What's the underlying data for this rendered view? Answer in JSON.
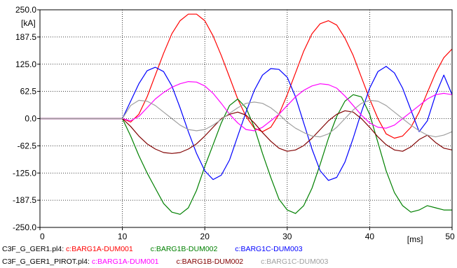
{
  "chart_data": {
    "type": "line",
    "title": "",
    "xlabel": "",
    "ylabel": "",
    "x_unit": "[ms]",
    "y_unit": "[kA]",
    "xlim": [
      0,
      50
    ],
    "ylim": [
      -250,
      250
    ],
    "grid": true,
    "x_ticks": [
      "0",
      "10",
      "20",
      "30",
      "40",
      "[ms]",
      "50"
    ],
    "y_ticks": [
      "250.0",
      "187.5",
      "125.0",
      "62.5",
      "0.0",
      "-62.5",
      "-125.0",
      "-187.5",
      "-250.0"
    ],
    "x_tick_values": [
      0,
      10,
      20,
      30,
      40,
      50
    ],
    "y_tick_values": [
      250,
      187.5,
      125,
      62.5,
      0,
      -62.5,
      -125,
      -187.5,
      -250
    ],
    "x": [
      0,
      5,
      10,
      11,
      12,
      13,
      14,
      15,
      16,
      17,
      18,
      19,
      20,
      21,
      22,
      23,
      24,
      25,
      26,
      27,
      28,
      29,
      30,
      31,
      32,
      33,
      34,
      35,
      36,
      37,
      38,
      39,
      40,
      41,
      42,
      43,
      44,
      45,
      46,
      47,
      48,
      49,
      50
    ],
    "series": [
      {
        "name": "c:BARG1A-DUM001",
        "file": "C3F_G_GER1.pl4",
        "color": "#ff0000",
        "values": [
          0,
          0,
          0,
          -8,
          10,
          50,
          100,
          150,
          195,
          225,
          240,
          240,
          225,
          190,
          145,
          95,
          45,
          5,
          -22,
          -30,
          -20,
          10,
          55,
          105,
          155,
          195,
          218,
          225,
          215,
          185,
          145,
          95,
          45,
          0,
          -35,
          -45,
          -40,
          -20,
          15,
          60,
          105,
          140,
          160
        ]
      },
      {
        "name": "c:BARG1B-DUM002",
        "file": "C3F_G_GER1.pl4",
        "color": "#008000",
        "values": [
          0,
          0,
          0,
          -40,
          -85,
          -125,
          -160,
          -195,
          -215,
          -220,
          -205,
          -165,
          -110,
          -60,
          -10,
          30,
          45,
          25,
          -20,
          -80,
          -135,
          -185,
          -210,
          -218,
          -200,
          -160,
          -105,
          -45,
          5,
          40,
          55,
          50,
          10,
          -55,
          -120,
          -170,
          -200,
          -215,
          -210,
          -200,
          -205,
          -210,
          -210
        ]
      },
      {
        "name": "c:BARG1C-DUM003",
        "file": "C3F_G_GER1.pl4",
        "color": "#0000ff",
        "values": [
          0,
          0,
          0,
          40,
          80,
          110,
          118,
          108,
          75,
          25,
          -30,
          -80,
          -120,
          -140,
          -130,
          -95,
          -40,
          15,
          65,
          100,
          115,
          113,
          95,
          50,
          -10,
          -70,
          -120,
          -142,
          -135,
          -100,
          -45,
          15,
          70,
          108,
          120,
          105,
          70,
          20,
          -30,
          -5,
          55,
          100,
          55
        ]
      },
      {
        "name": "c:BARG1A-DUM001",
        "file": "C3F_G_GER1_PIROT.pl4",
        "color": "#ff00ff",
        "values": [
          0,
          0,
          0,
          -5,
          5,
          25,
          45,
          60,
          72,
          80,
          85,
          84,
          75,
          58,
          35,
          10,
          -10,
          -25,
          -28,
          -20,
          -5,
          10,
          30,
          50,
          65,
          75,
          80,
          78,
          70,
          52,
          30,
          8,
          -10,
          -20,
          -22,
          -15,
          0,
          15,
          30,
          45,
          55,
          58,
          55
        ]
      },
      {
        "name": "c:BARG1B-DUM002",
        "file": "C3F_G_GER1_PIROT.pl4",
        "color": "#800000",
        "values": [
          0,
          0,
          0,
          -18,
          -40,
          -58,
          -70,
          -78,
          -80,
          -78,
          -70,
          -58,
          -40,
          -20,
          0,
          10,
          15,
          8,
          -10,
          -32,
          -52,
          -68,
          -75,
          -72,
          -62,
          -45,
          -25,
          -5,
          10,
          18,
          15,
          0,
          -20,
          -42,
          -60,
          -72,
          -75,
          -65,
          -48,
          -38,
          -55,
          -68,
          -72
        ]
      },
      {
        "name": "c:BARG1C-DUM003",
        "file": "C3F_G_GER1_PIROT.pl4",
        "color": "#a0a0a0",
        "values": [
          0,
          0,
          0,
          30,
          42,
          40,
          30,
          15,
          0,
          -15,
          -25,
          -28,
          -25,
          -15,
          -2,
          12,
          25,
          35,
          38,
          35,
          25,
          10,
          -8,
          -22,
          -32,
          -40,
          -42,
          -35,
          -20,
          0,
          20,
          35,
          42,
          40,
          30,
          15,
          0,
          -15,
          -28,
          -38,
          -42,
          -38,
          -30
        ]
      }
    ]
  },
  "legend": {
    "row1_file": "C3F_G_GER1.pl4:",
    "row1_entries": [
      "c:BARG1A-DUM001",
      "c:BARG1B-DUM002",
      "c:BARG1C-DUM003"
    ],
    "row2_file": "C3F_G_GER1_PIROT.pl4:",
    "row2_entries": [
      "c:BARG1A-DUM001",
      "c:BARG1B-DUM002",
      "c:BARG1C-DUM003"
    ]
  }
}
